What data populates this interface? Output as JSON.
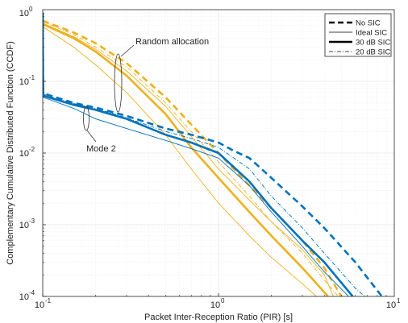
{
  "chart_data": {
    "type": "line",
    "xlabel": "Packet Inter-Reception Ratio (PIR) [s]",
    "ylabel": "Complementary Cumulative Distributed Function (CCDF)",
    "xscale": "log",
    "yscale": "log",
    "xlim": [
      0.1,
      10
    ],
    "ylim": [
      0.0001,
      1
    ],
    "grid": true,
    "x_ticks": [
      {
        "value": 0.1,
        "base": "10",
        "exp": "-1"
      },
      {
        "value": 1,
        "base": "10",
        "exp": "0"
      },
      {
        "value": 10,
        "base": "10",
        "exp": "1"
      }
    ],
    "y_ticks": [
      {
        "value": 1,
        "base": "10",
        "exp": "0"
      },
      {
        "value": 0.1,
        "base": "10",
        "exp": "-1"
      },
      {
        "value": 0.01,
        "base": "10",
        "exp": "-2"
      },
      {
        "value": 0.001,
        "base": "10",
        "exp": "-3"
      },
      {
        "value": 0.0001,
        "base": "10",
        "exp": "-4"
      }
    ],
    "legend": {
      "placement": "top-right",
      "entries": [
        {
          "label": "No SIC",
          "style": "dashed-thick"
        },
        {
          "label": "Ideal SIC",
          "style": "solid-thin"
        },
        {
          "label": "30 dB SIC",
          "style": "solid-thick"
        },
        {
          "label": "20 dB SIC",
          "style": "dashdot-thin"
        }
      ]
    },
    "annotations": [
      {
        "text": "Random allocation"
      },
      {
        "text": "Mode 2"
      }
    ],
    "colors": {
      "random_allocation": "#EDB120",
      "mode2": "#0072BD"
    },
    "series": [
      {
        "group": "random_allocation",
        "style": "dashed-thick",
        "points": [
          [
            0.1,
            0.7
          ],
          [
            0.15,
            0.48
          ],
          [
            0.2,
            0.34
          ],
          [
            0.3,
            0.18
          ],
          [
            0.5,
            0.06
          ],
          [
            0.7,
            0.025
          ],
          [
            1,
            0.01
          ],
          [
            1.5,
            0.0035
          ],
          [
            2,
            0.0017
          ],
          [
            3,
            0.0006
          ],
          [
            4,
            0.00025
          ],
          [
            5,
            0.0001
          ]
        ]
      },
      {
        "group": "random_allocation",
        "style": "solid-thick",
        "points": [
          [
            0.1,
            0.63
          ],
          [
            0.15,
            0.4
          ],
          [
            0.2,
            0.26
          ],
          [
            0.3,
            0.12
          ],
          [
            0.5,
            0.035
          ],
          [
            0.7,
            0.012
          ],
          [
            1,
            0.0045
          ],
          [
            1.5,
            0.0015
          ],
          [
            2,
            0.0007
          ],
          [
            3,
            0.00025
          ],
          [
            4.2,
            0.0001
          ]
        ]
      },
      {
        "group": "random_allocation",
        "style": "dashdot-thin",
        "points": [
          [
            0.1,
            0.68
          ],
          [
            0.15,
            0.45
          ],
          [
            0.2,
            0.3
          ],
          [
            0.3,
            0.16
          ],
          [
            0.5,
            0.05
          ],
          [
            0.7,
            0.02
          ],
          [
            1,
            0.0075
          ],
          [
            1.5,
            0.0025
          ],
          [
            2,
            0.0011
          ],
          [
            3,
            0.0004
          ],
          [
            4,
            0.00017
          ],
          [
            4.8,
            0.0001
          ]
        ]
      },
      {
        "group": "random_allocation",
        "style": "solid-thin",
        "points": [
          [
            0.1,
            0.58
          ],
          [
            0.15,
            0.3
          ],
          [
            0.2,
            0.17
          ],
          [
            0.3,
            0.07
          ],
          [
            0.5,
            0.018
          ],
          [
            0.7,
            0.006
          ],
          [
            1,
            0.002
          ],
          [
            1.5,
            0.0007
          ],
          [
            2,
            0.00035
          ],
          [
            3,
            0.00015
          ],
          [
            3.6,
            0.0001
          ]
        ]
      },
      {
        "group": "random_allocation",
        "style": "solid-thin",
        "points": [
          [
            0.1,
            0.65
          ],
          [
            0.15,
            0.42
          ],
          [
            0.2,
            0.28
          ],
          [
            0.3,
            0.14
          ],
          [
            0.5,
            0.045
          ],
          [
            0.7,
            0.017
          ],
          [
            1,
            0.006
          ],
          [
            1.5,
            0.0022
          ],
          [
            2,
            0.0011
          ],
          [
            3,
            0.00045
          ],
          [
            4,
            0.0002
          ],
          [
            4.5,
            0.0001
          ]
        ]
      },
      {
        "group": "mode2",
        "style": "dashed-thick",
        "points": [
          [
            0.1,
            0.9
          ],
          [
            0.1005,
            0.068
          ],
          [
            0.15,
            0.05
          ],
          [
            0.2,
            0.043
          ],
          [
            0.3,
            0.033
          ],
          [
            0.5,
            0.022
          ],
          [
            0.7,
            0.018
          ],
          [
            1,
            0.014
          ],
          [
            1.2,
            0.011
          ],
          [
            1.5,
            0.0085
          ],
          [
            2,
            0.0045
          ],
          [
            3,
            0.0018
          ],
          [
            4,
            0.0009
          ],
          [
            6,
            0.0003
          ],
          [
            8.5,
            0.0001
          ]
        ]
      },
      {
        "group": "mode2",
        "style": "solid-thick",
        "points": [
          [
            0.1,
            0.9
          ],
          [
            0.1005,
            0.063
          ],
          [
            0.15,
            0.047
          ],
          [
            0.2,
            0.04
          ],
          [
            0.3,
            0.03
          ],
          [
            0.5,
            0.018
          ],
          [
            0.7,
            0.014
          ],
          [
            1,
            0.01
          ],
          [
            1.5,
            0.004
          ],
          [
            2,
            0.0017
          ],
          [
            3,
            0.0006
          ],
          [
            4,
            0.0003
          ],
          [
            5.8,
            0.0001
          ]
        ]
      },
      {
        "group": "mode2",
        "style": "dashdot-thin",
        "points": [
          [
            0.1,
            0.9
          ],
          [
            0.1005,
            0.066
          ],
          [
            0.15,
            0.049
          ],
          [
            0.2,
            0.042
          ],
          [
            0.3,
            0.031
          ],
          [
            0.5,
            0.02
          ],
          [
            0.7,
            0.016
          ],
          [
            1,
            0.012
          ],
          [
            1.5,
            0.006
          ],
          [
            2,
            0.0025
          ],
          [
            3,
            0.0009
          ],
          [
            4,
            0.0004
          ],
          [
            6,
            0.00013
          ],
          [
            6.8,
            0.0001
          ]
        ]
      },
      {
        "group": "mode2",
        "style": "solid-thin",
        "points": [
          [
            0.1,
            0.9
          ],
          [
            0.1005,
            0.06
          ],
          [
            0.15,
            0.042
          ],
          [
            0.2,
            0.03
          ],
          [
            0.3,
            0.022
          ],
          [
            0.5,
            0.015
          ],
          [
            0.7,
            0.0115
          ],
          [
            1,
            0.0085
          ],
          [
            1.5,
            0.0035
          ],
          [
            2,
            0.0015
          ],
          [
            3,
            0.0005
          ],
          [
            4,
            0.00022
          ],
          [
            5.5,
            0.0001
          ]
        ]
      }
    ]
  }
}
